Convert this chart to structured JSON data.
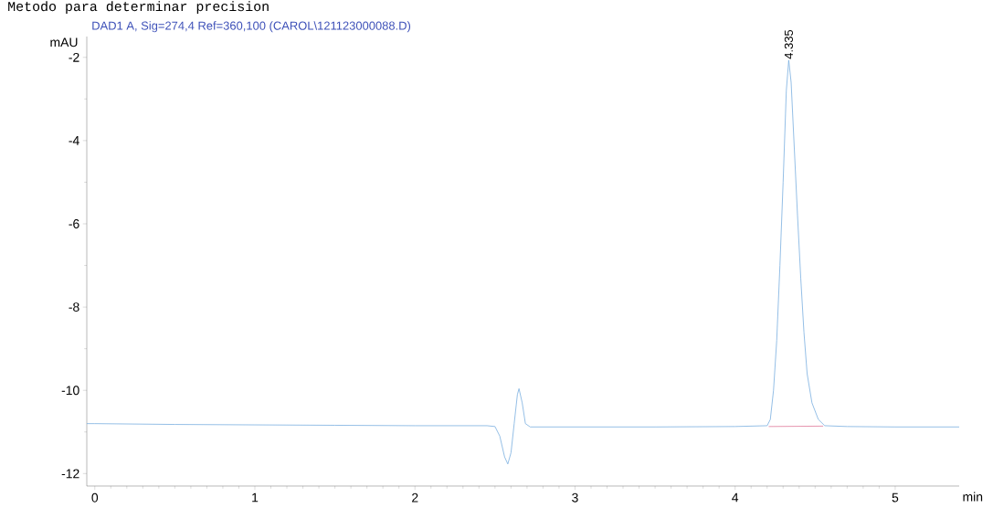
{
  "chart_data": {
    "type": "line",
    "title": "Metodo para determinar precision",
    "subtitle": "DAD1 A, Sig=274,4 Ref=360,100 (CAROL\\121123000088.D)",
    "xlabel": "min",
    "ylabel": "mAU",
    "xlim": [
      -0.05,
      5.4
    ],
    "ylim": [
      -12.3,
      -1.5
    ],
    "xticks": [
      0,
      1,
      2,
      3,
      4,
      5
    ],
    "yticks": [
      -12,
      -10,
      -8,
      -6,
      -4,
      -2
    ],
    "grid": false,
    "marker": "none",
    "line_style": "solid",
    "annotations": [
      {
        "text": "4.335",
        "x": 4.335,
        "y": -2.07
      }
    ],
    "series": [
      {
        "color": "#7aaee0",
        "x": [
          -0.05,
          0,
          0.5,
          1.0,
          1.5,
          2.0,
          2.45,
          2.5,
          2.53,
          2.56,
          2.58,
          2.6,
          2.62,
          2.64,
          2.65,
          2.67,
          2.69,
          2.72,
          3.0,
          3.5,
          4.0,
          4.2,
          4.22,
          4.24,
          4.26,
          4.28,
          4.3,
          4.32,
          4.335,
          4.35,
          4.37,
          4.39,
          4.41,
          4.43,
          4.45,
          4.48,
          4.52,
          4.56,
          4.7,
          5.0,
          5.4
        ],
        "values": [
          -10.8,
          -10.8,
          -10.82,
          -10.83,
          -10.84,
          -10.85,
          -10.85,
          -10.87,
          -11.1,
          -11.6,
          -11.77,
          -11.5,
          -10.8,
          -10.1,
          -9.96,
          -10.3,
          -10.8,
          -10.88,
          -10.88,
          -10.88,
          -10.87,
          -10.85,
          -10.7,
          -10.0,
          -8.8,
          -7.0,
          -5.0,
          -2.8,
          -2.07,
          -2.6,
          -4.2,
          -5.8,
          -7.3,
          -8.6,
          -9.6,
          -10.3,
          -10.7,
          -10.85,
          -10.87,
          -10.88,
          -10.88
        ]
      },
      {
        "color": "#e07a9a",
        "x": [
          4.21,
          4.55
        ],
        "values": [
          -10.87,
          -10.86
        ]
      }
    ]
  }
}
